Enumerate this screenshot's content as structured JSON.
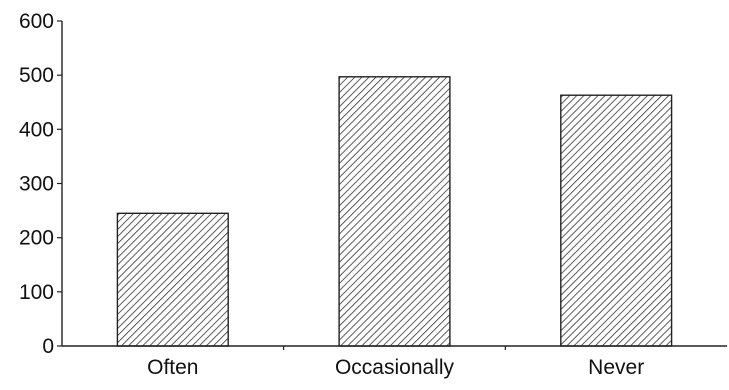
{
  "chart_data": {
    "type": "bar",
    "categories": [
      "Often",
      "Occasionally",
      "Never"
    ],
    "values": [
      245,
      497,
      463
    ],
    "ylim": [
      0,
      600
    ],
    "yticks": [
      0,
      100,
      200,
      300,
      400,
      500,
      600
    ],
    "title": "",
    "xlabel": "",
    "ylabel": "",
    "grid": false,
    "bar_fill": "hatched",
    "colors": {
      "bar_stroke": "#222222",
      "hatch": "#333333",
      "axis": "#222222"
    }
  }
}
